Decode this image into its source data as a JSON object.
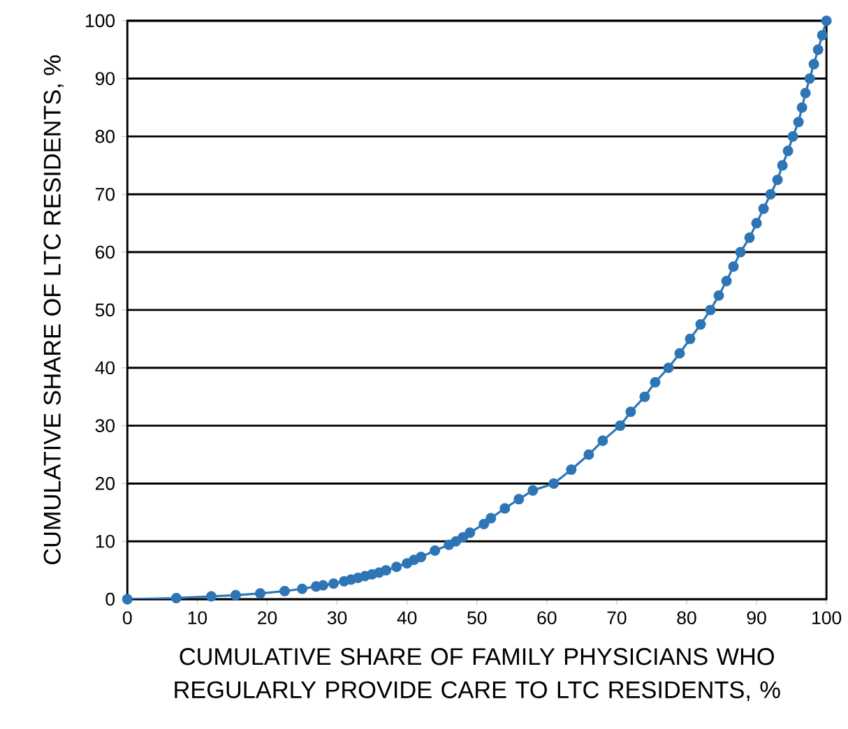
{
  "chart_data": {
    "type": "line",
    "xlabel": "CUMULATIVE SHARE OF FAMILY PHYSICIANS WHO REGULARLY PROVIDE CARE TO LTC RESIDENTS, %",
    "ylabel": "CUMULATIVE SHARE OF LTC RESIDENTS, %",
    "series": [
      {
        "color": "#2e75b6",
        "x": [
          0,
          7,
          12,
          15.5,
          19,
          22.5,
          25,
          27,
          28,
          29.5,
          31,
          32,
          33,
          34,
          35,
          36,
          37,
          38.5,
          40,
          41,
          42,
          44,
          46,
          47,
          48,
          49,
          51,
          52,
          54,
          56,
          58,
          61,
          63.5,
          66,
          68,
          70.5,
          72,
          74,
          75.5,
          77.4,
          79,
          80.5,
          82,
          83.4,
          84.6,
          85.7,
          86.7,
          87.7,
          89,
          90,
          91,
          92,
          93,
          93.7,
          94.5,
          95.2,
          96,
          96.5,
          97,
          97.6,
          98.2,
          98.8,
          99.4,
          100
        ],
        "values": [
          0,
          0.2,
          0.5,
          0.7,
          1,
          1.4,
          1.8,
          2.2,
          2.4,
          2.7,
          3.1,
          3.4,
          3.7,
          4,
          4.3,
          4.6,
          5,
          5.6,
          6.2,
          6.8,
          7.3,
          8.4,
          9.4,
          10,
          10.7,
          11.5,
          13,
          14,
          15.7,
          17.3,
          18.8,
          20,
          22.4,
          25,
          27.4,
          30,
          32.4,
          35,
          37.5,
          40,
          42.5,
          45,
          47.5,
          50,
          52.5,
          55,
          57.5,
          60,
          62.5,
          65,
          67.5,
          70,
          72.5,
          75,
          77.5,
          80,
          82.5,
          85,
          87.5,
          90,
          92.5,
          95,
          97.5,
          100
        ]
      }
    ],
    "xlim": [
      0,
      100
    ],
    "ylim": [
      0,
      100
    ],
    "xticks": [
      0,
      10,
      20,
      30,
      40,
      50,
      60,
      70,
      80,
      90,
      100
    ],
    "yticks": [
      0,
      10,
      20,
      30,
      40,
      50,
      60,
      70,
      80,
      90,
      100
    ],
    "grid": "y",
    "marker": "circle",
    "line_style": "solid"
  }
}
